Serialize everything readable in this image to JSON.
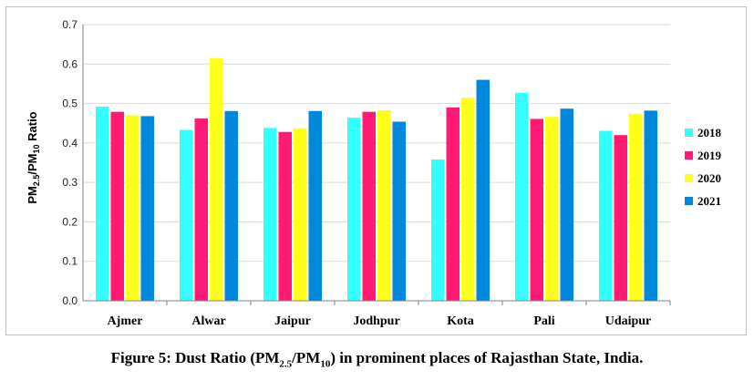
{
  "chart_data": {
    "type": "bar",
    "categories": [
      "Ajmer",
      "Alwar",
      "Jaipur",
      "Jodhpur",
      "Kota",
      "Pali",
      "Udaipur"
    ],
    "series": [
      {
        "name": "2018",
        "color": "#33ffff",
        "values": [
          0.492,
          0.433,
          0.438,
          0.464,
          0.358,
          0.527,
          0.431
        ]
      },
      {
        "name": "2019",
        "color": "#ff1a75",
        "values": [
          0.479,
          0.462,
          0.428,
          0.479,
          0.49,
          0.461,
          0.42
        ]
      },
      {
        "name": "2020",
        "color": "#ffff1a",
        "values": [
          0.47,
          0.615,
          0.437,
          0.483,
          0.515,
          0.466,
          0.474
        ]
      },
      {
        "name": "2021",
        "color": "#0088dd",
        "values": [
          0.468,
          0.481,
          0.481,
          0.454,
          0.56,
          0.487,
          0.482
        ]
      }
    ],
    "ylim": [
      0,
      0.7
    ],
    "yticks": [
      "0.0",
      "0.1",
      "0.2",
      "0.3",
      "0.4",
      "0.5",
      "0.6",
      "0.7"
    ],
    "ylabel": {
      "prefix": "PM",
      "sub1": "2.5",
      "mid": "/PM",
      "sub2": "10",
      "suffix": " Ratio"
    },
    "grid": true,
    "legend_position": "right"
  },
  "caption": {
    "part1": "Figure 5: Dust Ratio (PM",
    "sub1": "2.5",
    "part2": "/PM",
    "sub2": "10",
    "part3": ") in prominent places of Rajasthan State, India."
  }
}
